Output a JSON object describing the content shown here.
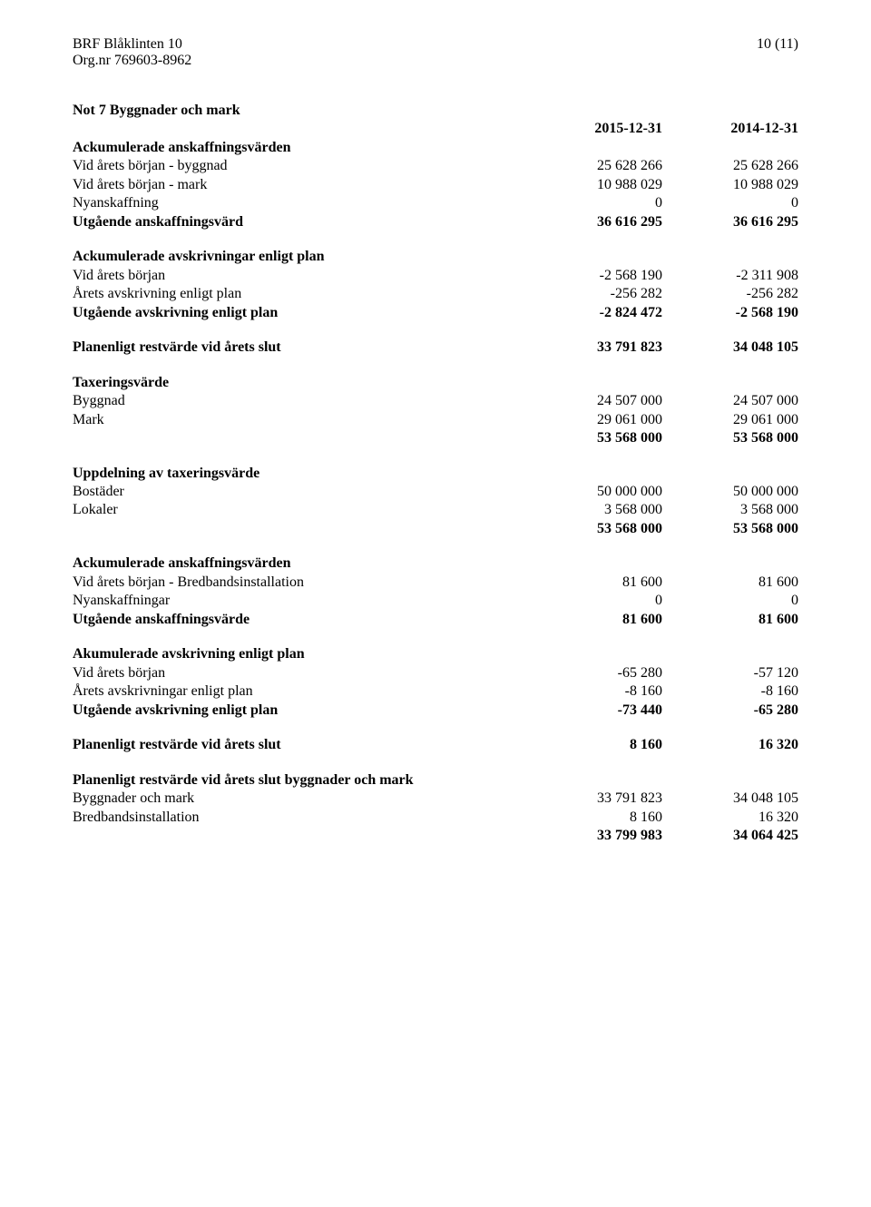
{
  "header": {
    "org_name": "BRF Blåklinten 10",
    "org_line": "Org.nr 769603-8962",
    "page_no": "10 (11)"
  },
  "note_title": "Not 7 Byggnader och mark",
  "col_headers": {
    "c1": "2015-12-31",
    "c2": "2014-12-31"
  },
  "s1": {
    "h": "Ackumulerade anskaffningsvärden",
    "r1": {
      "l": "Vid årets början - byggnad",
      "c1": "25 628 266",
      "c2": "25 628 266"
    },
    "r2": {
      "l": "Vid årets början - mark",
      "c1": "10 988 029",
      "c2": "10 988 029"
    },
    "r3": {
      "l": "Nyanskaffning",
      "c1": "0",
      "c2": "0"
    },
    "r4": {
      "l": "Utgående anskaffningsvärd",
      "c1": "36 616 295",
      "c2": "36 616 295"
    }
  },
  "s2": {
    "h": "Ackumulerade avskrivningar enligt plan",
    "r1": {
      "l": "Vid årets början",
      "c1": "-2 568 190",
      "c2": "-2 311 908"
    },
    "r2": {
      "l": "Årets avskrivning enligt plan",
      "c1": "-256 282",
      "c2": "-256 282"
    },
    "r3": {
      "l": "Utgående avskrivning enligt plan",
      "c1": "-2 824 472",
      "c2": "-2 568 190"
    }
  },
  "s3": {
    "r1": {
      "l": "Planenligt restvärde vid årets slut",
      "c1": "33 791 823",
      "c2": "34 048 105"
    }
  },
  "s4": {
    "h": "Taxeringsvärde",
    "r1": {
      "l": "Byggnad",
      "c1": "24 507 000",
      "c2": "24 507 000"
    },
    "r2": {
      "l": "Mark",
      "c1": "29 061 000",
      "c2": "29 061 000"
    },
    "r3": {
      "l": "",
      "c1": "53 568 000",
      "c2": "53 568 000"
    }
  },
  "s5": {
    "h": "Uppdelning av taxeringsvärde",
    "r1": {
      "l": "Bostäder",
      "c1": "50 000 000",
      "c2": "50 000 000"
    },
    "r2": {
      "l": "Lokaler",
      "c1": "3 568 000",
      "c2": "3 568 000"
    },
    "r3": {
      "l": "",
      "c1": "53 568 000",
      "c2": "53 568 000"
    }
  },
  "s6": {
    "h": "Ackumulerade anskaffningsvärden",
    "r1": {
      "l": "Vid årets början - Bredbandsinstallation",
      "c1": "81 600",
      "c2": "81 600"
    },
    "r2": {
      "l": "Nyanskaffningar",
      "c1": "0",
      "c2": "0"
    },
    "r3": {
      "l": "Utgående anskaffningsvärde",
      "c1": "81 600",
      "c2": "81 600"
    }
  },
  "s7": {
    "h": "Akumulerade avskrivning enligt plan",
    "r1": {
      "l": "Vid årets början",
      "c1": "-65 280",
      "c2": "-57 120"
    },
    "r2": {
      "l": "Årets avskrivningar enligt plan",
      "c1": "-8 160",
      "c2": "-8 160"
    },
    "r3": {
      "l": "Utgående avskrivning enligt plan",
      "c1": "-73 440",
      "c2": "-65 280"
    }
  },
  "s8": {
    "r1": {
      "l": "Planenligt restvärde vid årets slut",
      "c1": "8 160",
      "c2": "16 320"
    }
  },
  "s9": {
    "h": "Planenligt restvärde vid årets slut byggnader och mark",
    "r1": {
      "l": "Byggnader och mark",
      "c1": "33 791 823",
      "c2": "34 048 105"
    },
    "r2": {
      "l": "Bredbandsinstallation",
      "c1": "8 160",
      "c2": "16 320"
    },
    "r3": {
      "l": "",
      "c1": "33 799 983",
      "c2": "34 064 425"
    }
  }
}
